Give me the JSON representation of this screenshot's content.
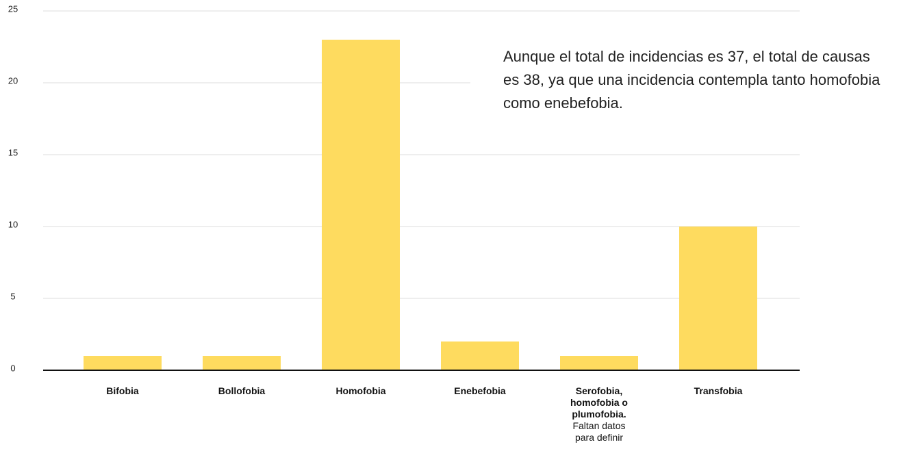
{
  "chart_data": {
    "type": "bar",
    "categories": [
      "Bifobia",
      "Bollofobia",
      "Homofobia",
      "Enebefobia",
      "Serofobia, homofobia o plumofobia.",
      "Transfobia"
    ],
    "values": [
      1,
      1,
      23,
      2,
      1,
      10
    ],
    "color": "#fedb5f",
    "ylim": [
      0,
      25
    ],
    "yticks": [
      0,
      5,
      10,
      15,
      20,
      25
    ],
    "grid": true,
    "annotations": [
      {
        "text": "Aunque el total de incidencias es 37, el total de causas es 38, ya que una incidencia contempla tanto homofobia como enebefobia."
      },
      {
        "text": "Faltan datos para definir"
      }
    ]
  }
}
